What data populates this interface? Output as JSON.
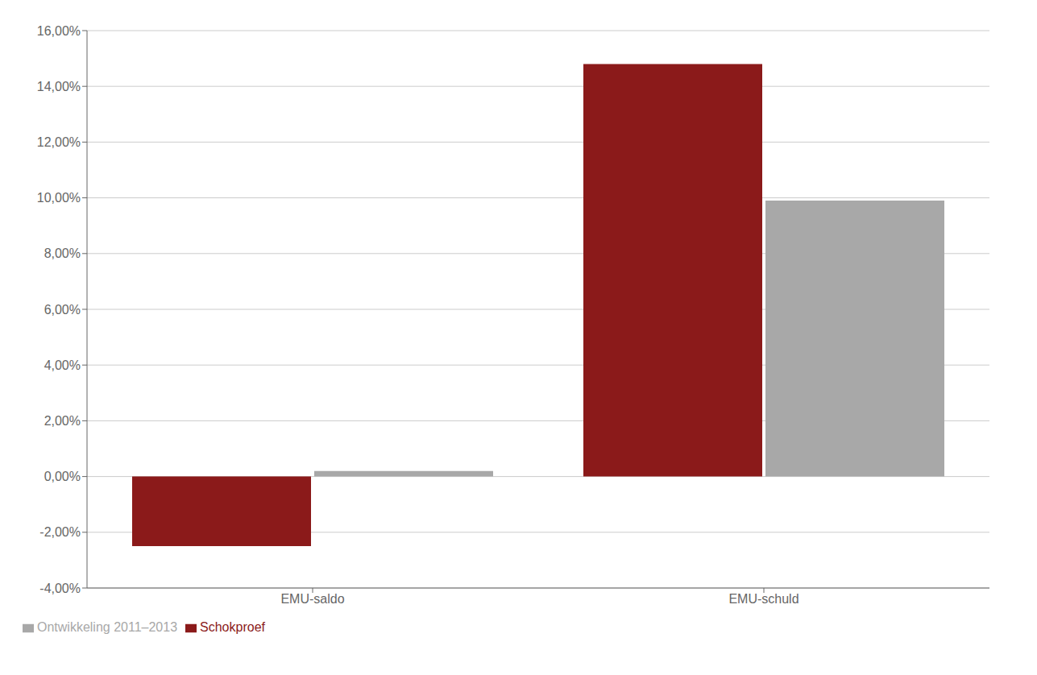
{
  "chart_data": {
    "type": "bar",
    "categories": [
      "EMU-saldo",
      "EMU-schuld"
    ],
    "series": [
      {
        "name": "Schokproef",
        "color": "#8B1A1A",
        "values": [
          -2.5,
          14.8
        ]
      },
      {
        "name": "Ontwikkeling 2011–2013",
        "color": "#A8A8A8",
        "values": [
          0.2,
          9.9
        ]
      }
    ],
    "ylim": [
      -4,
      16
    ],
    "yticks": [
      {
        "value": -4,
        "label": "-4,00%"
      },
      {
        "value": -2,
        "label": "-2,00%"
      },
      {
        "value": 0,
        "label": "0,00%"
      },
      {
        "value": 2,
        "label": "2,00%"
      },
      {
        "value": 4,
        "label": "4,00%"
      },
      {
        "value": 6,
        "label": "6,00%"
      },
      {
        "value": 8,
        "label": "8,00%"
      },
      {
        "value": 10,
        "label": "10,00%"
      },
      {
        "value": 12,
        "label": "12,00%"
      },
      {
        "value": 14,
        "label": "14,00%"
      },
      {
        "value": 16,
        "label": "16,00%"
      }
    ],
    "grid": true,
    "legend": "bottom"
  }
}
